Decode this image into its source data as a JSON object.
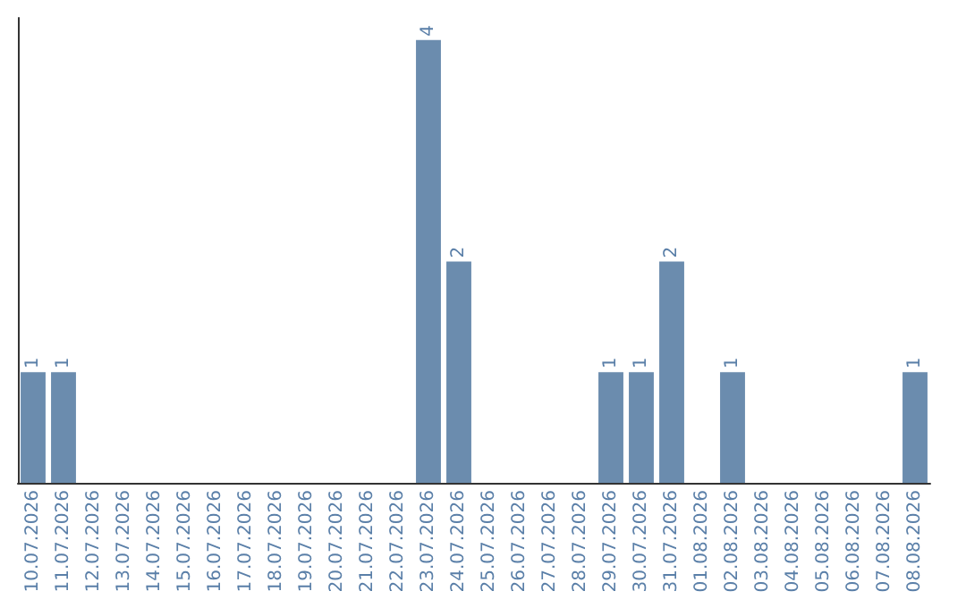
{
  "chart_data": {
    "type": "bar",
    "categories": [
      "10.07.2026",
      "11.07.2026",
      "12.07.2026",
      "13.07.2026",
      "14.07.2026",
      "15.07.2026",
      "16.07.2026",
      "17.07.2026",
      "18.07.2026",
      "19.07.2026",
      "20.07.2026",
      "21.07.2026",
      "22.07.2026",
      "23.07.2026",
      "24.07.2026",
      "25.07.2026",
      "26.07.2026",
      "27.07.2026",
      "28.07.2026",
      "29.07.2026",
      "30.07.2026",
      "31.07.2026",
      "01.08.2026",
      "02.08.2026",
      "03.08.2026",
      "04.08.2026",
      "05.08.2026",
      "06.08.2026",
      "07.08.2026",
      "08.08.2026"
    ],
    "values": [
      1,
      1,
      0,
      0,
      0,
      0,
      0,
      0,
      0,
      0,
      0,
      0,
      0,
      4,
      2,
      0,
      0,
      0,
      0,
      1,
      1,
      2,
      0,
      1,
      0,
      0,
      0,
      0,
      0,
      1
    ],
    "value_labels": [
      "1",
      "1",
      null,
      null,
      null,
      null,
      null,
      null,
      null,
      null,
      null,
      null,
      null,
      "4",
      "2",
      null,
      null,
      null,
      null,
      "1",
      "1",
      "2",
      null,
      "1",
      null,
      null,
      null,
      null,
      null,
      "1"
    ],
    "color": "#6b8cae",
    "ylim": [
      0,
      4.2
    ],
    "tick_labels": "x"
  }
}
